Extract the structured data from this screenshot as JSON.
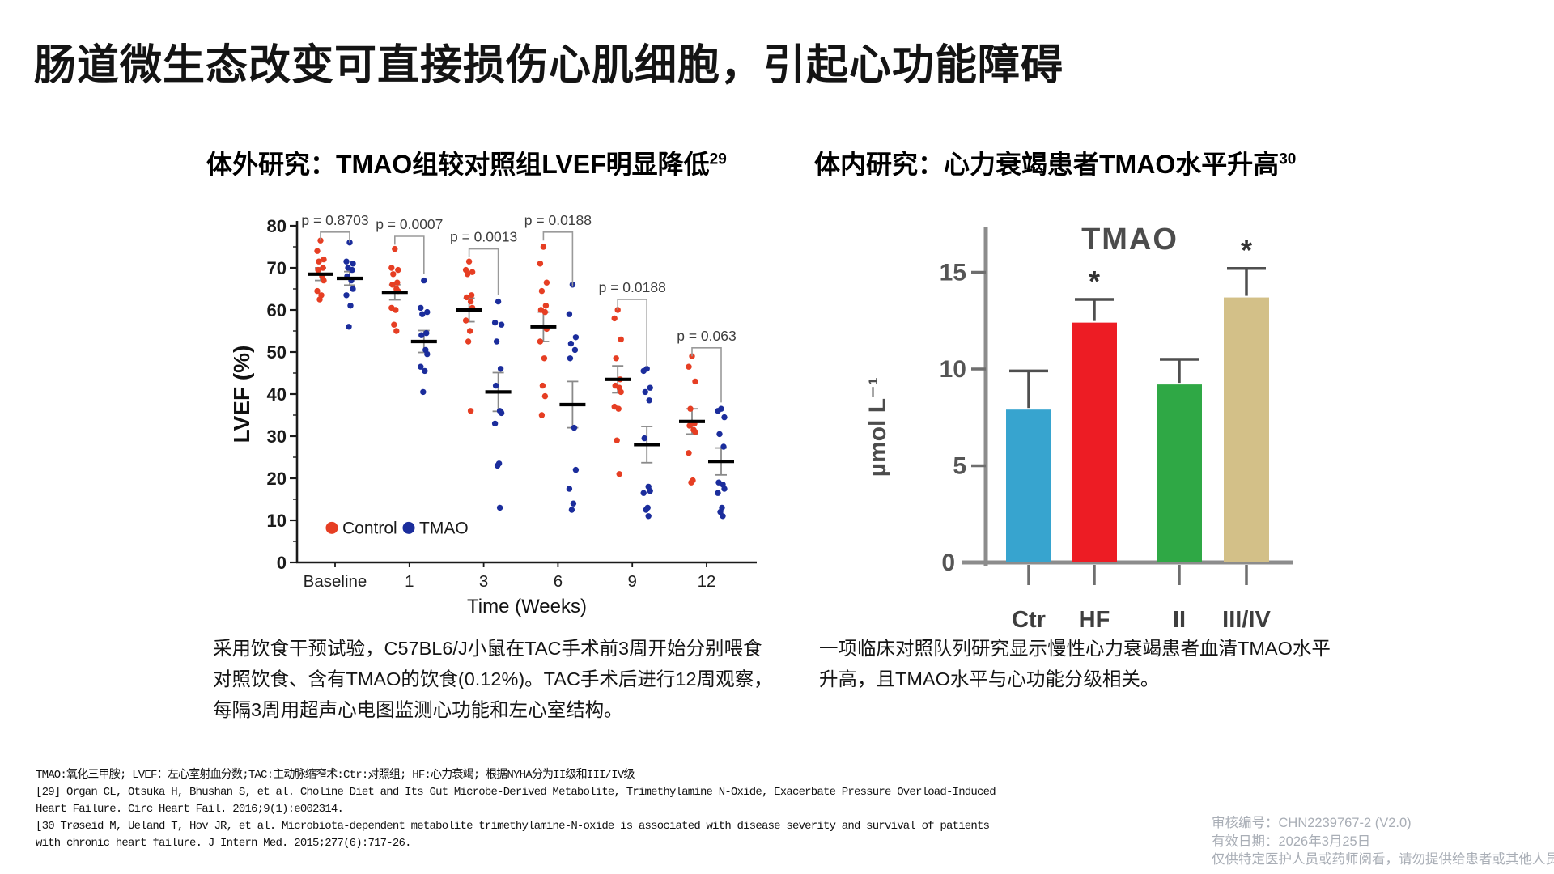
{
  "slide": {
    "title": "肠道微生态改变可直接损伤心肌细胞，引起心功能障碍"
  },
  "panels": {
    "left": {
      "title": "体外研究：TMAO组较对照组LVEF明显降低",
      "ref_sup": "29",
      "caption_lines": [
        "采用饮食干预试验，C57BL6/J小鼠在TAC手术前3周开始分别喂食",
        "对照饮食、含有TMAO的饮食(0.12%)。TAC手术后进行12周观察，",
        "每隔3周用超声心电图监测心功能和左心室结构。"
      ]
    },
    "right": {
      "title": "体内研究：心力衰竭患者TMAO水平升高",
      "ref_sup": "30",
      "caption_lines": [
        "一项临床对照队列研究显示慢性心力衰竭患者血清TMAO水平",
        "升高，且TMAO水平与心功能分级相关。"
      ]
    }
  },
  "footnotes": {
    "lines": [
      "TMAO:氧化三甲胺; LVEF：左心室射血分数;TAC:主动脉缩窄术:Ctr:对照组; HF:心力衰竭; 根据NYHA分为II级和III/IV级",
      "[29] Organ CL, Otsuka H, Bhushan S, et al. Choline Diet and Its Gut Microbe-Derived Metabolite, Trimethylamine N-Oxide, Exacerbate Pressure Overload-Induced",
      "Heart Failure. Circ Heart Fail. 2016;9(1):e002314.",
      "[30 Trøseid M, Ueland T, Hov JR, et al. Microbiota-dependent metabolite trimethylamine-N-oxide is associated with disease severity and survival of patients",
      "with chronic heart failure. J Intern Med. 2015;277(6):717-26."
    ]
  },
  "compliance": {
    "lines": [
      "审核编号：CHN2239767-2 (V2.0)",
      "有效日期：2026年3月25日",
      "仅供特定医护人员或药师阅看，请勿提供给患者或其他人员"
    ]
  },
  "chart_data": [
    {
      "type": "scatter",
      "title": "",
      "xlabel": "Time (Weeks)",
      "ylabel": "LVEF (%)",
      "ylim": [
        0,
        80
      ],
      "yticks": [
        0,
        10,
        20,
        30,
        40,
        50,
        60,
        70,
        80
      ],
      "categories": [
        "Baseline",
        "1",
        "3",
        "6",
        "9",
        "12"
      ],
      "grid": false,
      "legend_position": "inside-bottom-left",
      "series": [
        {
          "name": "Control",
          "color": "#e63e23",
          "points": [
            [
              76.5,
              74,
              72,
              71.5,
              70,
              69.5,
              68,
              67,
              64.5,
              63.5,
              62.5
            ],
            [
              74.5,
              70,
              69.5,
              68.5,
              66.5,
              66,
              65,
              64.5,
              60.5,
              60,
              56.5,
              55
            ],
            [
              71.5,
              69.5,
              69,
              68.5,
              63.5,
              63,
              62,
              60.5,
              57.5,
              55,
              52.5,
              36
            ],
            [
              75,
              71,
              66.5,
              64.5,
              61,
              60,
              59.5,
              55.5,
              52.5,
              48.5,
              42,
              39.5,
              35
            ],
            [
              60,
              58,
              53,
              48.5,
              43.5,
              42,
              41.5,
              40.5,
              37,
              36.5,
              29,
              21
            ],
            [
              49,
              46.5,
              43,
              36.5,
              33,
              32.5,
              31.5,
              31,
              26,
              19.5,
              19
            ]
          ],
          "mean": [
            68.5,
            64.2,
            60,
            56,
            43.5,
            33.5
          ],
          "sem": [
            1.5,
            1.8,
            2.8,
            3.5,
            3.2,
            3.0
          ]
        },
        {
          "name": "TMAO",
          "color": "#1b2d9c",
          "points": [
            [
              76,
              71.5,
              71,
              70,
              69.5,
              68,
              67,
              65,
              63.5,
              61,
              56
            ],
            [
              67,
              60.5,
              59.5,
              59,
              54.5,
              54,
              50.5,
              49.5,
              46.5,
              45.5,
              40.5
            ],
            [
              62,
              57,
              56.5,
              52.5,
              46,
              42,
              36,
              35.5,
              33,
              23.5,
              23,
              13
            ],
            [
              66,
              59,
              53.5,
              52,
              50.5,
              48.5,
              32,
              22,
              17.5,
              14,
              12.5
            ],
            [
              46,
              45.5,
              41.5,
              40.5,
              38.5,
              29.5,
              18,
              17,
              16.5,
              13,
              12.5,
              11
            ],
            [
              36.5,
              36,
              34.5,
              30.5,
              27.5,
              19,
              18.5,
              17.5,
              16.5,
              13,
              12,
              11
            ]
          ],
          "mean": [
            67.5,
            52.5,
            40.5,
            37.5,
            28,
            24
          ],
          "sem": [
            1.6,
            2.6,
            4.6,
            5.5,
            4.3,
            3.2
          ]
        }
      ],
      "p_values": [
        {
          "label": "p = 0.8703",
          "y": 78.5,
          "left_drop": 2,
          "right_drop": 2.5
        },
        {
          "label": "p = 0.0007",
          "y": 77.5,
          "left_drop": 2,
          "right_drop": 9
        },
        {
          "label": "p = 0.0013",
          "y": 74.5,
          "left_drop": 2,
          "right_drop": 11
        },
        {
          "label": "p = 0.0188",
          "y": 78.5,
          "left_drop": 2,
          "right_drop": 13
        },
        {
          "label": "p = 0.0188",
          "y": 62.5,
          "left_drop": 2.5,
          "right_drop": 16
        },
        {
          "label": "p = 0.063",
          "y": 51,
          "left_drop": 2,
          "right_drop": 13
        }
      ]
    },
    {
      "type": "bar",
      "title": "TMAO",
      "xlabel": "",
      "ylabel": "µmol L⁻¹",
      "ylim": [
        0,
        17
      ],
      "yticks": [
        0,
        5,
        10,
        15
      ],
      "categories": [
        "Ctr",
        "HF",
        "II",
        "III/IV"
      ],
      "values": [
        7.9,
        12.4,
        9.2,
        13.7
      ],
      "errors": [
        2.0,
        1.2,
        1.3,
        1.5
      ],
      "significance": [
        "",
        "*",
        "",
        "*"
      ],
      "colors": [
        "#37a4cf",
        "#ed1c24",
        "#2fa845",
        "#d3c088"
      ],
      "axis_color": "#8c8c8c",
      "grid": false
    }
  ]
}
